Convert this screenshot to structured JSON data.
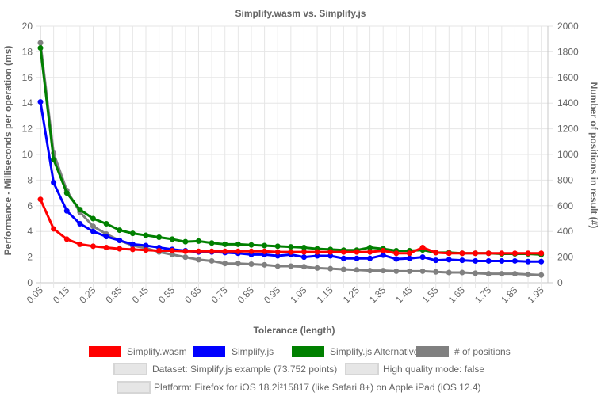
{
  "chart_data": {
    "type": "line",
    "title": "Simplify.wasm vs. Simplify.js",
    "xlabel": "Tolerance (length)",
    "ylabel_left": "Performance - Milliseconds per operation (ms)",
    "ylabel_right": "Number of positions in result (#)",
    "ylim_left": [
      0,
      20
    ],
    "ylim_right": [
      0,
      2000
    ],
    "yticks_left": [
      "0",
      "2",
      "4",
      "6",
      "8",
      "10",
      "12",
      "14",
      "16",
      "18",
      "20"
    ],
    "yticks_right": [
      "0",
      "200",
      "400",
      "600",
      "800",
      "1000",
      "1200",
      "1400",
      "1600",
      "1800",
      "2000"
    ],
    "grid": true,
    "legend_position": "bottom",
    "x": [
      0.05,
      0.1,
      0.15,
      0.2,
      0.25,
      0.3,
      0.35,
      0.4,
      0.45,
      0.5,
      0.55,
      0.6,
      0.65,
      0.7,
      0.75,
      0.8,
      0.85,
      0.9,
      0.95,
      1.0,
      1.05,
      1.1,
      1.15,
      1.2,
      1.25,
      1.3,
      1.35,
      1.4,
      1.45,
      1.5,
      1.55,
      1.6,
      1.65,
      1.7,
      1.75,
      1.8,
      1.85,
      1.9,
      1.95
    ],
    "x_tick_labels": [
      "0.05",
      "0.15",
      "0.25",
      "0.35",
      "0.45",
      "0.55",
      "0.65",
      "0.75",
      "0.85",
      "0.95",
      "1.05",
      "1.15",
      "1.25",
      "1.35",
      "1.45",
      "1.55",
      "1.65",
      "1.75",
      "1.85",
      "1.95"
    ],
    "series": [
      {
        "name": "Simplify.wasm",
        "color": "#ff0000",
        "axis": "left",
        "values": [
          6.5,
          4.2,
          3.4,
          3.0,
          2.85,
          2.75,
          2.65,
          2.6,
          2.55,
          2.5,
          2.5,
          2.45,
          2.45,
          2.45,
          2.45,
          2.45,
          2.45,
          2.45,
          2.4,
          2.4,
          2.4,
          2.4,
          2.4,
          2.4,
          2.4,
          2.4,
          2.5,
          2.3,
          2.3,
          2.75,
          2.35,
          2.3,
          2.3,
          2.3,
          2.3,
          2.3,
          2.3,
          2.3,
          2.3
        ]
      },
      {
        "name": "Simplify.js",
        "color": "#0000ff",
        "axis": "left",
        "values": [
          14.1,
          7.8,
          5.6,
          4.6,
          4.0,
          3.6,
          3.3,
          3.0,
          2.9,
          2.75,
          2.6,
          2.5,
          2.4,
          2.4,
          2.35,
          2.3,
          2.2,
          2.2,
          2.1,
          2.2,
          2.0,
          2.1,
          2.1,
          1.9,
          1.9,
          1.9,
          2.15,
          1.85,
          1.9,
          2.0,
          1.75,
          1.8,
          1.75,
          1.7,
          1.7,
          1.7,
          1.7,
          1.65,
          1.65
        ]
      },
      {
        "name": "Simplify.js Alternative",
        "color": "#008000",
        "axis": "left",
        "values": [
          18.3,
          9.6,
          7.0,
          5.7,
          5.0,
          4.6,
          4.1,
          3.85,
          3.7,
          3.55,
          3.4,
          3.2,
          3.25,
          3.1,
          3.0,
          3.0,
          2.95,
          2.9,
          2.85,
          2.8,
          2.75,
          2.65,
          2.6,
          2.55,
          2.55,
          2.75,
          2.65,
          2.5,
          2.5,
          2.55,
          2.35,
          2.35,
          2.3,
          2.3,
          2.3,
          2.25,
          2.25,
          2.25,
          2.2
        ]
      },
      {
        "name": "# of positions",
        "color": "#808080",
        "axis": "right",
        "values": [
          1870,
          1010,
          720,
          550,
          440,
          380,
          330,
          290,
          270,
          240,
          220,
          200,
          180,
          170,
          150,
          150,
          145,
          140,
          130,
          130,
          125,
          115,
          110,
          105,
          100,
          95,
          95,
          90,
          90,
          90,
          85,
          80,
          80,
          75,
          70,
          70,
          70,
          65,
          60
        ]
      }
    ],
    "info_items": [
      "Dataset: Simplify.js example (73.752 points)",
      "High quality mode: false",
      "Platform: Firefox for iOS 18.2Î²15817 (like Safari 8+) on Apple iPad (iOS 12.4)"
    ]
  }
}
